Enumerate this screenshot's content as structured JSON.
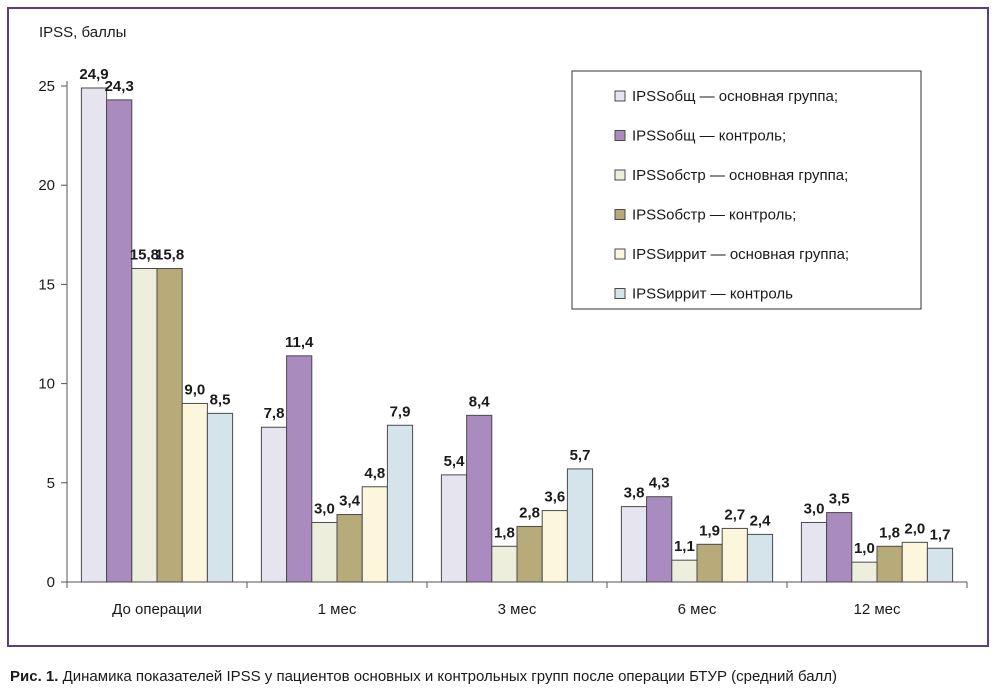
{
  "chart_data": {
    "type": "bar",
    "ylabel": "IPSS, баллы",
    "ylim": [
      0,
      25
    ],
    "yticks": [
      0,
      5,
      10,
      15,
      20,
      25
    ],
    "grid": false,
    "legend_position": "top-right",
    "categories": [
      "До операции",
      "1 мес",
      "3 мес",
      "6 мес",
      "12 мес"
    ],
    "series": [
      {
        "name": "IPSSобщ — основная группа;",
        "color": "#e6e4ee",
        "values": [
          24.9,
          7.8,
          5.4,
          3.8,
          3.0
        ],
        "labels": [
          "24,9",
          "7,8",
          "5,4",
          "3,8",
          "3,0"
        ]
      },
      {
        "name": "IPSSобщ — контроль;",
        "color": "#a98bbf",
        "values": [
          24.3,
          11.4,
          8.4,
          4.3,
          3.5
        ],
        "labels": [
          "24,3",
          "11,4",
          "8,4",
          "4,3",
          "3,5"
        ]
      },
      {
        "name": "IPSSобстр — основная группа;",
        "color": "#eeeedd",
        "values": [
          15.8,
          3.0,
          1.8,
          1.1,
          1.0
        ],
        "labels": [
          "15,8",
          "3,0",
          "1,8",
          "1,1",
          "1,0"
        ]
      },
      {
        "name": "IPSSобстр — контроль;",
        "color": "#b8ab7a",
        "values": [
          15.8,
          3.4,
          2.8,
          1.9,
          1.8
        ],
        "labels": [
          "15,8",
          "3,4",
          "2,8",
          "1,9",
          "1,8"
        ]
      },
      {
        "name": "IPSSиррит — основная группа;",
        "color": "#fbf6dc",
        "values": [
          9.0,
          4.8,
          3.6,
          2.7,
          2.0
        ],
        "labels": [
          "9,0",
          "4,8",
          "3,6",
          "2,7",
          "2,0"
        ]
      },
      {
        "name": "IPSSиррит — контроль",
        "color": "#d4e4ea",
        "values": [
          8.5,
          7.9,
          5.7,
          2.4,
          1.7
        ],
        "labels": [
          "8,5",
          "7,9",
          "5,7",
          "2,4",
          "1,7"
        ]
      }
    ]
  },
  "caption": {
    "prefix": "Рис. 1.",
    "text": " Динамика показателей IPSS у пациентов основных и контрольных групп после операции БТУР (средний балл)"
  }
}
